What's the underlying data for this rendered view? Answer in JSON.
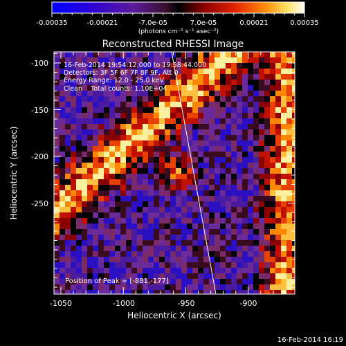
{
  "colorbar": {
    "ticks": [
      "-0.00035",
      "-0.00021",
      "-7.0e-05",
      "7.0e-05",
      "0.00021",
      "0.00035"
    ],
    "unit_label": "(photons cm⁻² s⁻¹ asec⁻²)",
    "colors": [
      "#0000ff",
      "#3a00c8",
      "#5a1a9a",
      "#7a2a6a",
      "#000000",
      "#8a0000",
      "#e02000",
      "#ff8800",
      "#ffe060",
      "#ffffff"
    ]
  },
  "title": "Reconstructed RHESSI Image",
  "annotations": {
    "time_range": "16-Feb-2014 19:54:12.000 to 19:58:44.000",
    "detectors": "Detectors: 3F 5F 6F 7F 8F 9F, Att 0",
    "energy_range": "Energy Range: 12.0 - 25.0 keV",
    "clean": "Clean    Total counts: 1.10E+04",
    "peak": "Position of Peak = [-881,-177]"
  },
  "axes": {
    "xlabel": "Heliocentric X (arcsec)",
    "ylabel": "Heliocentric Y (arcsec)",
    "xticks": [
      "-1050",
      "-1000",
      "-950",
      "-900"
    ],
    "yticks": [
      "-100",
      "-150",
      "-200",
      "-250"
    ]
  },
  "footer_timestamp": "16-Feb-2014 16:19"
}
